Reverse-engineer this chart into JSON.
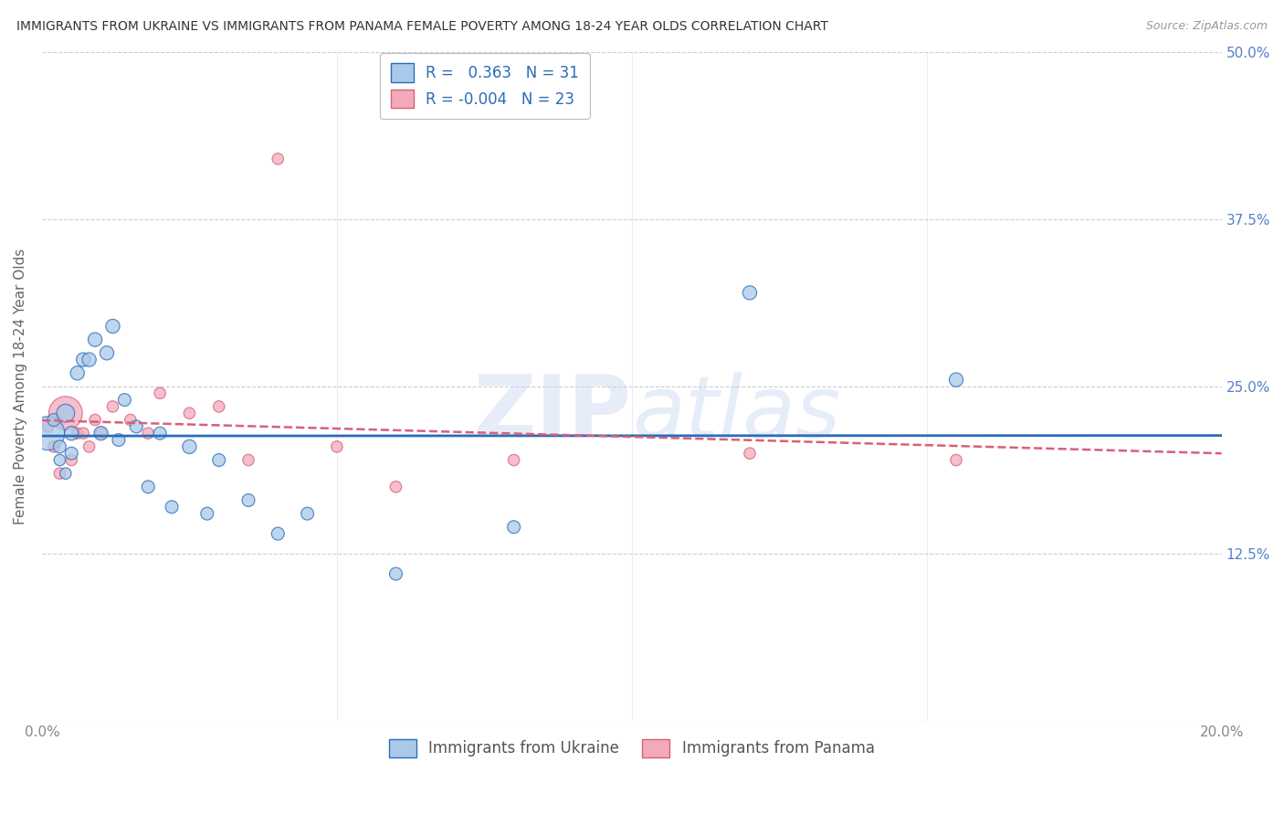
{
  "title": "IMMIGRANTS FROM UKRAINE VS IMMIGRANTS FROM PANAMA FEMALE POVERTY AMONG 18-24 YEAR OLDS CORRELATION CHART",
  "source": "Source: ZipAtlas.com",
  "ylabel": "Female Poverty Among 18-24 Year Olds",
  "xlim": [
    0,
    0.2
  ],
  "ylim": [
    0,
    0.5
  ],
  "ukraine_R": 0.363,
  "ukraine_N": 31,
  "panama_R": -0.004,
  "panama_N": 23,
  "ukraine_color": "#aac9ea",
  "panama_color": "#f2aaba",
  "ukraine_line_color": "#2b6cb8",
  "panama_line_color": "#d95f7a",
  "ukraine_x": [
    0.001,
    0.002,
    0.003,
    0.003,
    0.004,
    0.004,
    0.005,
    0.005,
    0.006,
    0.007,
    0.008,
    0.009,
    0.01,
    0.011,
    0.012,
    0.013,
    0.014,
    0.016,
    0.018,
    0.02,
    0.022,
    0.025,
    0.028,
    0.03,
    0.035,
    0.04,
    0.045,
    0.06,
    0.08,
    0.12,
    0.155
  ],
  "ukraine_y": [
    0.215,
    0.225,
    0.195,
    0.205,
    0.23,
    0.185,
    0.2,
    0.215,
    0.26,
    0.27,
    0.27,
    0.285,
    0.215,
    0.275,
    0.295,
    0.21,
    0.24,
    0.22,
    0.175,
    0.215,
    0.16,
    0.205,
    0.155,
    0.195,
    0.165,
    0.14,
    0.155,
    0.11,
    0.145,
    0.32,
    0.255
  ],
  "ukraine_size": [
    700,
    100,
    80,
    100,
    200,
    80,
    100,
    120,
    120,
    120,
    120,
    120,
    120,
    120,
    120,
    100,
    100,
    100,
    100,
    100,
    100,
    120,
    100,
    100,
    100,
    100,
    100,
    100,
    100,
    120,
    120
  ],
  "panama_x": [
    0.001,
    0.002,
    0.003,
    0.004,
    0.005,
    0.006,
    0.007,
    0.008,
    0.009,
    0.01,
    0.012,
    0.015,
    0.018,
    0.02,
    0.025,
    0.03,
    0.035,
    0.04,
    0.05,
    0.06,
    0.08,
    0.12,
    0.155
  ],
  "panama_y": [
    0.22,
    0.205,
    0.185,
    0.23,
    0.195,
    0.215,
    0.215,
    0.205,
    0.225,
    0.215,
    0.235,
    0.225,
    0.215,
    0.245,
    0.23,
    0.235,
    0.195,
    0.42,
    0.205,
    0.175,
    0.195,
    0.2,
    0.195
  ],
  "panama_size": [
    80,
    80,
    80,
    700,
    80,
    80,
    80,
    80,
    80,
    80,
    80,
    80,
    80,
    80,
    80,
    80,
    80,
    80,
    80,
    80,
    80,
    80,
    80
  ],
  "watermark_text": "ZIPatlas",
  "background_color": "#ffffff",
  "grid_color": "#c8c8c8",
  "tick_color": "#5580c8"
}
